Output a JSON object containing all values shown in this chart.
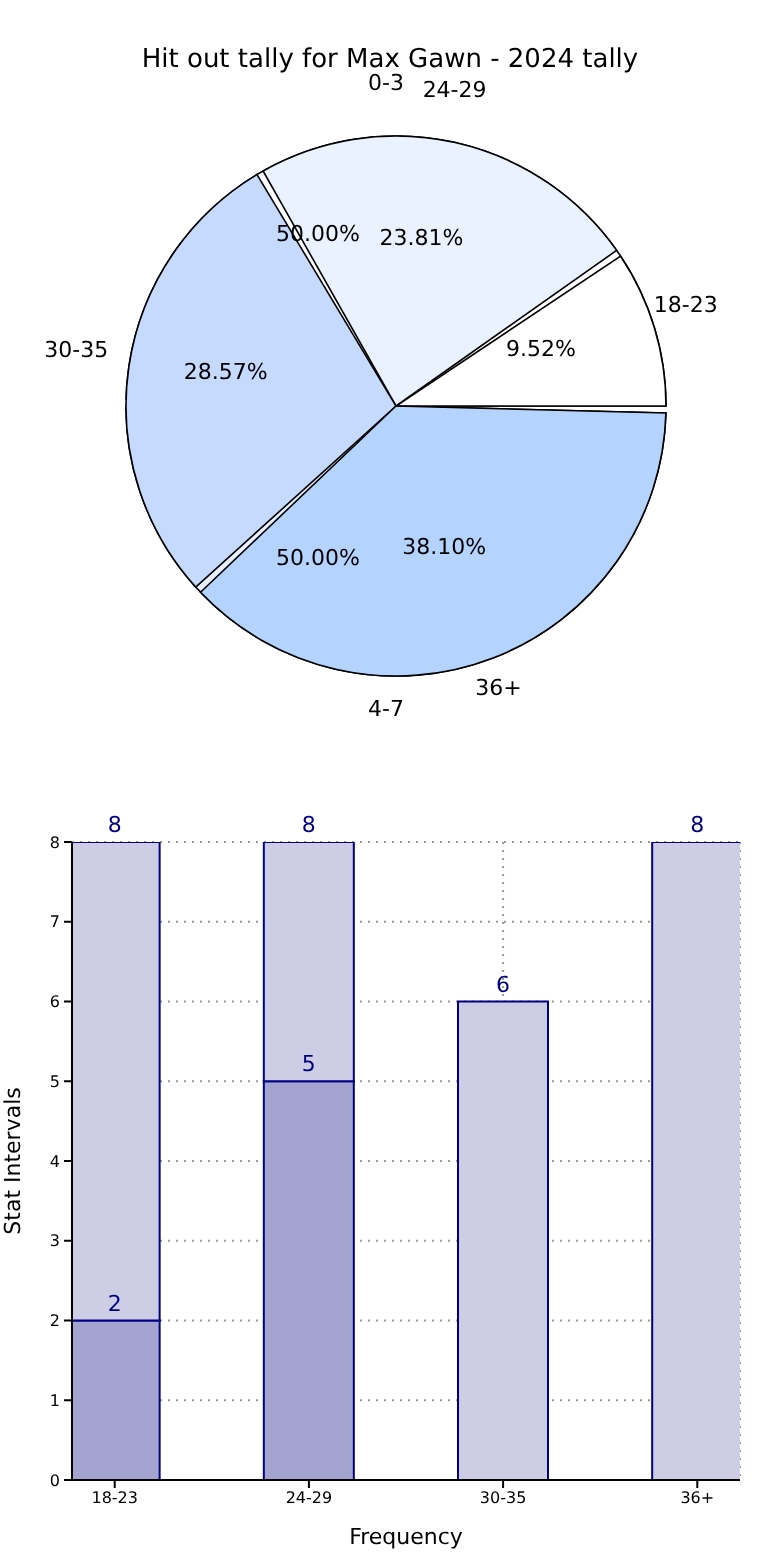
{
  "chart_data": [
    {
      "type": "pie",
      "title": "Hit out tally for Max Gawn - 2024 tally",
      "categories": [
        "18-23",
        "24-29",
        "30-35",
        "36+"
      ],
      "values": [
        9.52,
        23.81,
        28.57,
        38.1
      ],
      "colors": [
        "#ffffff",
        "#eaf2ff",
        "#c6d9ff",
        "#b4d4ff"
      ],
      "value_labels": [
        "9.52%",
        "23.81%",
        "28.57%",
        "38.10%"
      ]
    },
    {
      "type": "pie",
      "categories": [
        "0-3",
        "4-7"
      ],
      "values": [
        50,
        50
      ],
      "colors": [
        "#ffffff",
        "#e8f0ff"
      ],
      "value_labels": [
        "50.00%",
        "50.00%"
      ]
    },
    {
      "type": "bar",
      "categories": [
        "18-23",
        "24-29",
        "30-35",
        "36+"
      ],
      "xlabel": "Frequency",
      "ylabel": "Stat Intervals",
      "ylim": [
        0,
        8
      ],
      "yticks": [
        0,
        1,
        2,
        3,
        4,
        5,
        6,
        7,
        8
      ],
      "grid": true,
      "stacked": true,
      "totals": [
        "8",
        "8",
        "6",
        "8"
      ],
      "series": [
        {
          "color": "#a3a5d0",
          "values": [
            2,
            5,
            null,
            null
          ],
          "value_labels": [
            "2",
            "5",
            null,
            null
          ]
        },
        {
          "color": "#cdcde6",
          "values": [
            6,
            3,
            6,
            8
          ]
        }
      ]
    }
  ]
}
